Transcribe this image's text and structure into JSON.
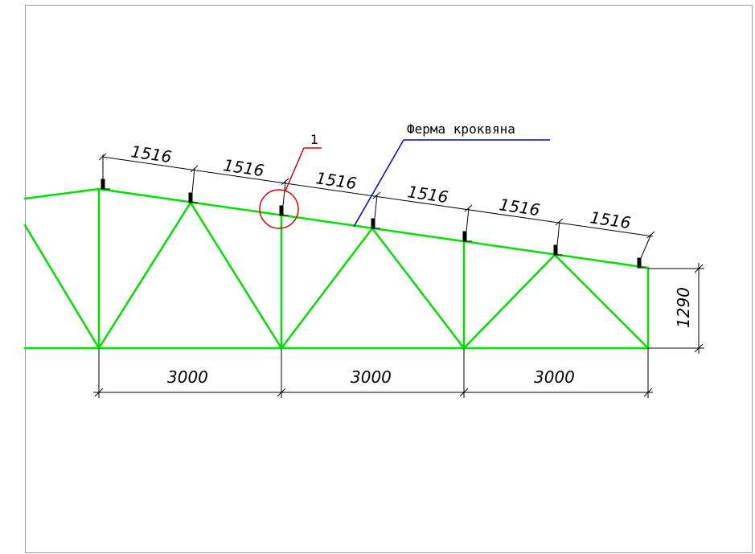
{
  "drawing": {
    "title_leader_label": "Ферма кроквяна",
    "callout_number": "1",
    "top_chord_dimensions": [
      "1516",
      "1516",
      "1516",
      "1516",
      "1516",
      "1516"
    ],
    "bottom_dimensions": [
      "3000",
      "3000",
      "3000"
    ],
    "height_dimension": "1290",
    "colors": {
      "truss": "#00e000",
      "leader": "#0000dd",
      "callout": "#dd0000",
      "dimension": "#000000",
      "frame": "#999999"
    }
  }
}
